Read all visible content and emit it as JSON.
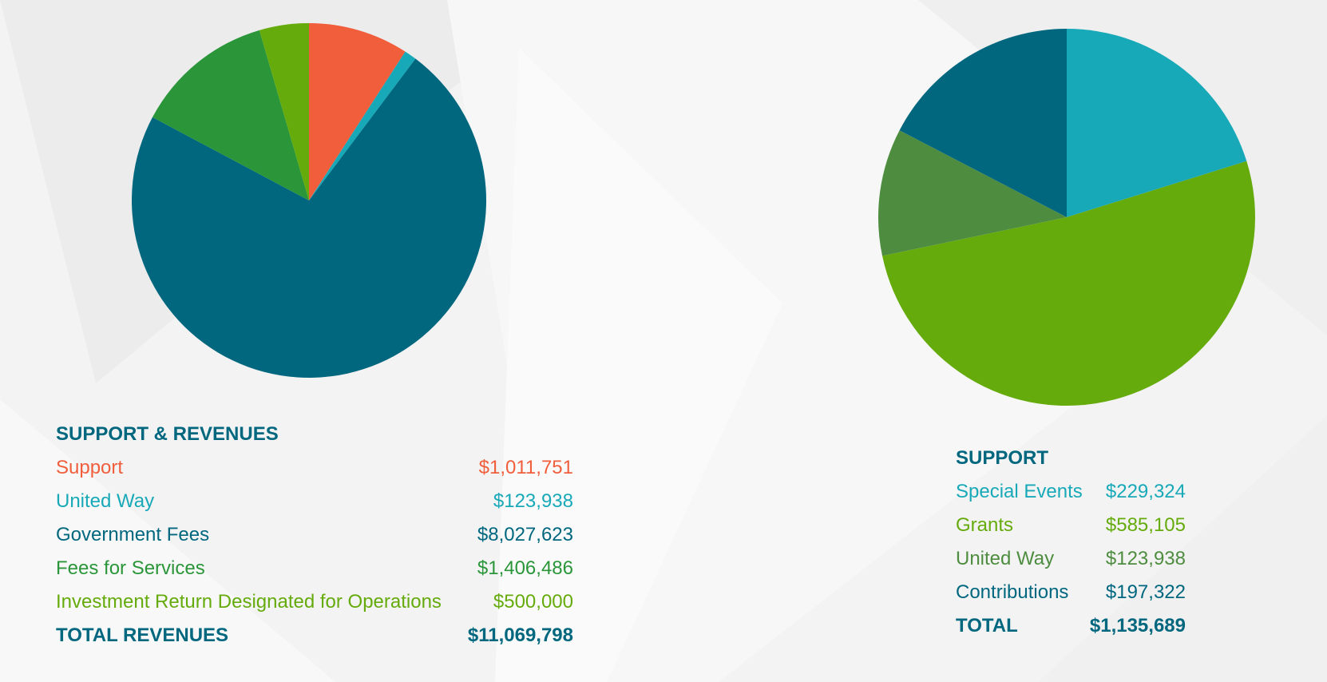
{
  "colors": {
    "orange": "#f05e3c",
    "teal": "#18a9b8",
    "navy": "#00677f",
    "green": "#2a9639",
    "lime": "#65ab0c",
    "olive": "#4e8d40",
    "heading": "#00677f"
  },
  "chart_data": [
    {
      "type": "pie",
      "title": "SUPPORT & REVENUES",
      "slices": [
        {
          "label": "Support",
          "value": 1011751,
          "display": "$1,011,751",
          "color": "#f05e3c"
        },
        {
          "label": "United Way",
          "value": 123938,
          "display": "$123,938",
          "color": "#18a9b8"
        },
        {
          "label": "Government Fees",
          "value": 8027623,
          "display": "$8,027,623",
          "color": "#00677f"
        },
        {
          "label": "Fees for Services",
          "value": 1406486,
          "display": "$1,406,486",
          "color": "#2a9639"
        },
        {
          "label": "Investment Return Designated for Operations",
          "value": 500000,
          "display": "$500,000",
          "color": "#65ab0c"
        }
      ],
      "total_label": "TOTAL REVENUES",
      "total_display": "$11,069,798"
    },
    {
      "type": "pie",
      "title": "SUPPORT",
      "slices": [
        {
          "label": "Special Events",
          "value": 229324,
          "display": "$229,324",
          "color": "#18a9b8"
        },
        {
          "label": "Grants",
          "value": 585105,
          "display": "$585,105",
          "color": "#65ab0c"
        },
        {
          "label": "United Way",
          "value": 123938,
          "display": "$123,938",
          "color": "#4e8d40"
        },
        {
          "label": "Contributions",
          "value": 197322,
          "display": "$197,322",
          "color": "#00677f"
        }
      ],
      "total_label": "TOTAL",
      "total_display": "$1,135,689"
    }
  ]
}
